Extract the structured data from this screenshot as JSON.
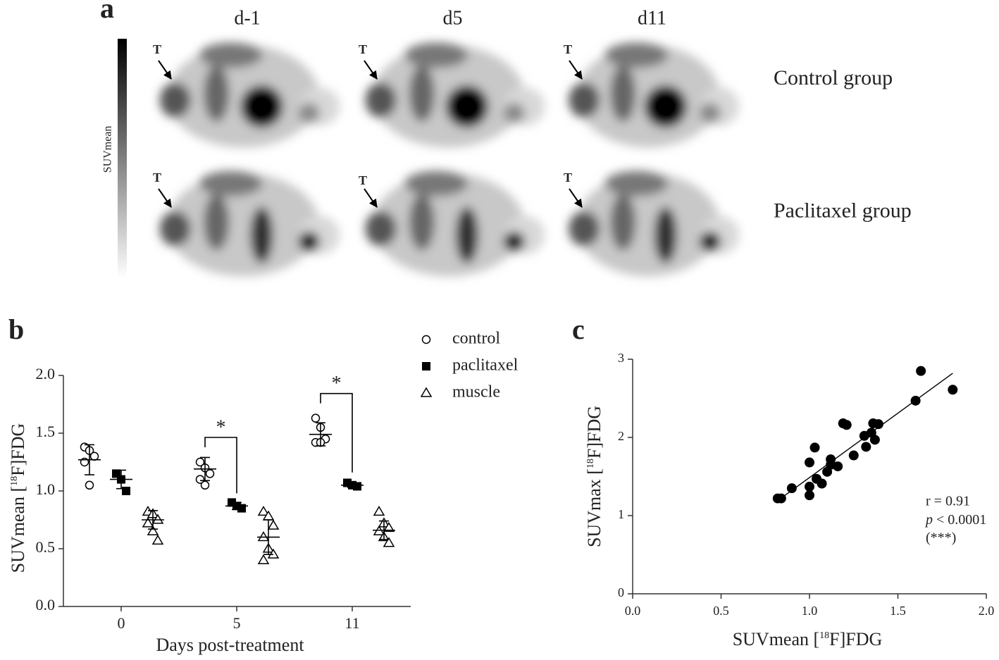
{
  "panel_a": {
    "label": "a",
    "columns": [
      "d-1",
      "d5",
      "d11"
    ],
    "rows": [
      "Control group",
      "Paclitaxel group"
    ],
    "colorbar_label": "SUVmean",
    "tumor_marker": "T"
  },
  "chart_data": [
    {
      "type": "dotplot",
      "panel_label": "b",
      "categories": [
        "0",
        "5",
        "11"
      ],
      "xlabel": "Days post-treatment",
      "ylabel": {
        "prefix": "SUVmean [",
        "sup": "18",
        "suffix": "F]FDG"
      },
      "ylim": [
        0,
        2
      ],
      "yticks": [
        {
          "value": 0,
          "label": "0.0"
        },
        {
          "value": 0.5,
          "label": "0.5"
        },
        {
          "value": 1,
          "label": "1.0"
        },
        {
          "value": 1.5,
          "label": "1.5"
        },
        {
          "value": 2,
          "label": "2.0"
        }
      ],
      "series": [
        {
          "name": "control",
          "marker": "circle",
          "color": "#000000",
          "values": [
            [
              1.38,
              1.35,
              1.3,
              1.25,
              1.05
            ],
            [
              1.25,
              1.2,
              1.15,
              1.1,
              1.05
            ],
            [
              1.63,
              1.55,
              1.45,
              1.42,
              1.42
            ]
          ],
          "mean": [
            1.27,
            1.19,
            1.49
          ],
          "sd": [
            0.13,
            0.1,
            0.1
          ]
        },
        {
          "name": "paclitaxel",
          "marker": "square",
          "color": "#000000",
          "values": [
            [
              1.15,
              1.1,
              1.0
            ],
            [
              0.9,
              0.87,
              0.85
            ],
            [
              1.07,
              1.05,
              1.04
            ]
          ],
          "mean": [
            1.1,
            0.87,
            1.05
          ],
          "sd": [
            0.08,
            0.03,
            0.02
          ]
        },
        {
          "name": "muscle",
          "marker": "triangle",
          "color": "#000000",
          "values": [
            [
              0.82,
              0.8,
              0.75,
              0.72,
              0.65,
              0.57
            ],
            [
              0.82,
              0.78,
              0.7,
              0.6,
              0.5,
              0.45,
              0.4
            ],
            [
              0.82,
              0.72,
              0.68,
              0.65,
              0.6,
              0.55
            ]
          ],
          "mean": [
            0.75,
            0.6,
            0.66
          ],
          "sd": [
            0.08,
            0.15,
            0.08
          ]
        }
      ],
      "significance": [
        {
          "category": 1,
          "text": "*"
        },
        {
          "category": 2,
          "text": "*"
        }
      ]
    },
    {
      "type": "scatter",
      "panel_label": "c",
      "x": [
        0.82,
        0.84,
        0.9,
        1.0,
        1.0,
        1.0,
        1.03,
        1.04,
        1.07,
        1.12,
        1.12,
        1.16,
        1.19,
        1.21,
        1.25,
        1.31,
        1.32,
        1.35,
        1.36,
        1.37,
        1.39,
        1.6,
        1.63,
        1.81,
        1.1
      ],
      "y": [
        1.22,
        1.22,
        1.35,
        1.26,
        1.37,
        1.68,
        1.87,
        1.47,
        1.41,
        1.65,
        1.72,
        1.63,
        2.18,
        2.16,
        1.77,
        2.02,
        1.88,
        2.06,
        2.18,
        1.97,
        2.17,
        2.47,
        2.85,
        2.61,
        1.56
      ],
      "color": "#000000",
      "fit": {
        "x": [
          0.85,
          1.81
        ],
        "y": [
          1.24,
          2.82
        ]
      },
      "xlabel": {
        "prefix": "SUVmean [",
        "sup": "18",
        "suffix": "F]FDG"
      },
      "ylabel": {
        "prefix": "SUVmax [",
        "sup": "18",
        "suffix": "F]FDG"
      },
      "xlim": [
        0,
        2
      ],
      "ylim": [
        0,
        3
      ],
      "xticks": [
        {
          "value": 0,
          "label": "0.0"
        },
        {
          "value": 0.5,
          "label": "0.5"
        },
        {
          "value": 1,
          "label": "1.0"
        },
        {
          "value": 1.5,
          "label": "1.5"
        },
        {
          "value": 2,
          "label": "2.0"
        }
      ],
      "yticks": [
        0,
        1,
        2,
        3
      ],
      "stats": {
        "r": "r = 0.91",
        "p_symbol": "p",
        "p": "< 0.0001",
        "stars": "(***)"
      }
    }
  ]
}
